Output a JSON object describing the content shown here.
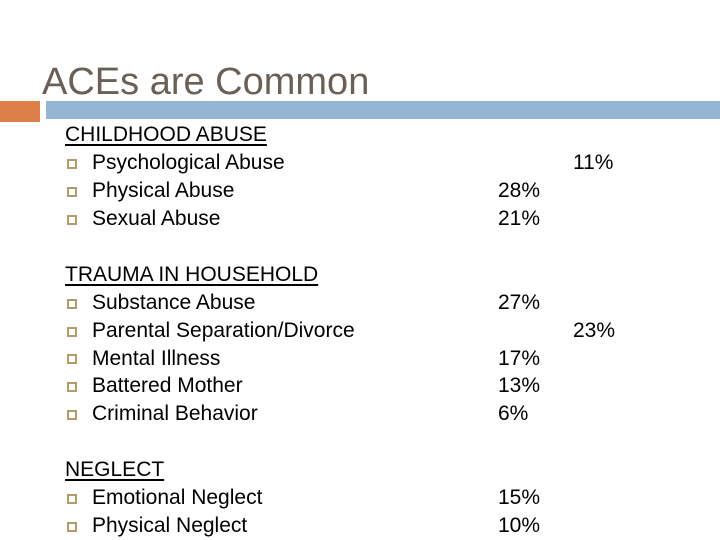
{
  "slide": {
    "title": "ACEs are Common",
    "colors": {
      "title_text": "#6B6057",
      "accent_orange": "#DD8047",
      "accent_blue": "#94B6D2",
      "bullet_border": "#B29A6F",
      "body_text": "#000000"
    },
    "sections": [
      {
        "heading": "CHILDHOOD ABUSE",
        "items": [
          {
            "label": "Psychological Abuse",
            "value": "11%",
            "value_col": "far"
          },
          {
            "label": "Physical Abuse",
            "value": "28%",
            "value_col": "near"
          },
          {
            "label": "Sexual Abuse",
            "value": "21%",
            "value_col": "near"
          }
        ]
      },
      {
        "heading": "TRAUMA IN HOUSEHOLD",
        "items": [
          {
            "label": "Substance Abuse",
            "value": "27%",
            "value_col": "near"
          },
          {
            "label": "Parental Separation/Divorce",
            "value": "23%",
            "value_col": "far"
          },
          {
            "label": "Mental Illness",
            "value": "17%",
            "value_col": "near"
          },
          {
            "label": "Battered Mother",
            "value": "13%",
            "value_col": "near"
          },
          {
            "label": "Criminal Behavior",
            "value": "6%",
            "value_col": "near"
          }
        ]
      },
      {
        "heading": "NEGLECT",
        "items": [
          {
            "label": "Emotional Neglect",
            "value": "15%",
            "value_col": "near"
          },
          {
            "label": "Physical Neglect",
            "value": "10%",
            "value_col": "near"
          }
        ]
      }
    ]
  }
}
